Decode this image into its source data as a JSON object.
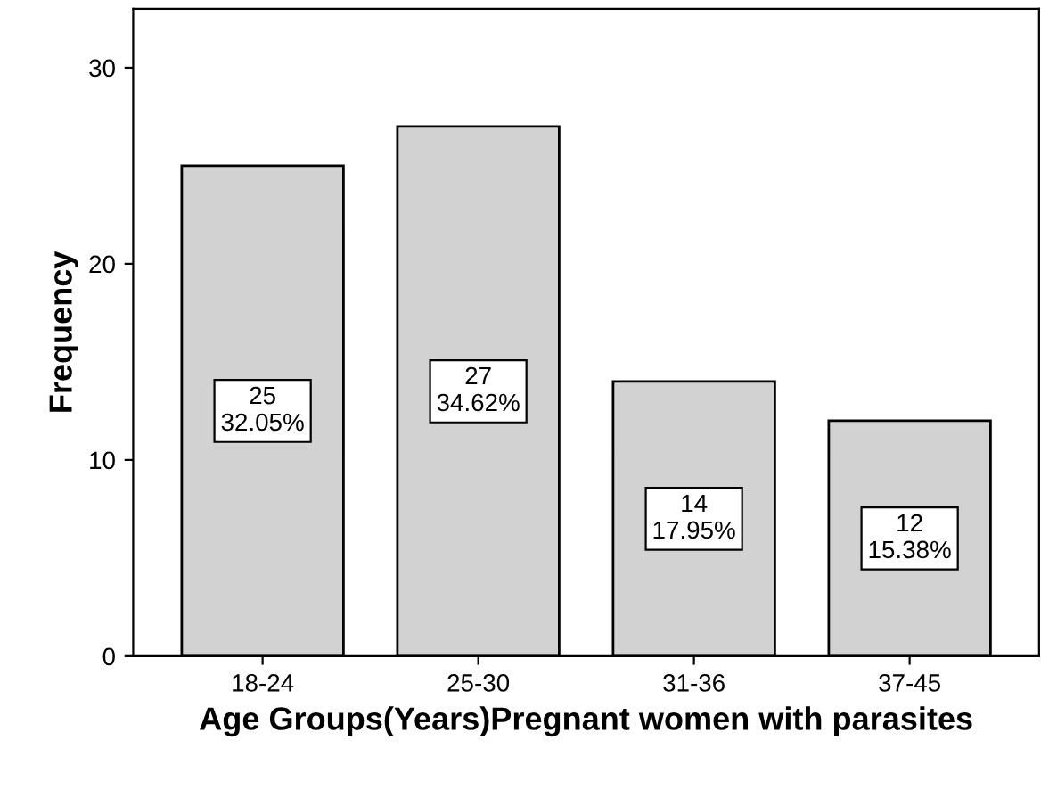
{
  "chart_data": {
    "type": "bar",
    "xlabel": "Age Groups(Years)Pregnant women with parasites",
    "ylabel": "Frequency",
    "categories": [
      "18-24",
      "25-30",
      "31-36",
      "37-45"
    ],
    "values": [
      25,
      27,
      14,
      12
    ],
    "value_labels": [
      "25\n32.05%",
      "27\n34.62%",
      "14\n17.95%",
      "12\n15.38%"
    ],
    "color": "#d2d2d2",
    "ylim": [
      0,
      33
    ],
    "yticks": [
      0,
      10,
      20,
      30
    ],
    "grid": false,
    "legend": false
  }
}
